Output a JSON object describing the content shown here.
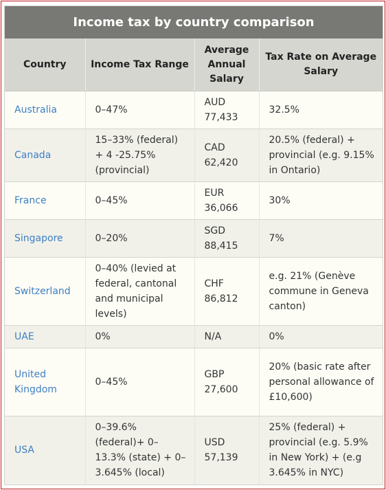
{
  "title": "Income tax by country comparison",
  "headers": {
    "country": "Country",
    "range": "Income Tax Range",
    "salary": "Average Annual Salary",
    "rate": "Tax Rate on Average Salary"
  },
  "rows": [
    {
      "country": "Australia",
      "range": "0–47%",
      "salary": "AUD 77,433",
      "rate": "32.5%"
    },
    {
      "country": "Canada",
      "range": "15–33% (federal) + 4 -25.75% (provincial)",
      "salary": "CAD 62,420",
      "rate": "20.5% (federal) + provincial (e.g. 9.15% in Ontario)"
    },
    {
      "country": "France",
      "range": "0–45%",
      "salary": "EUR 36,066",
      "rate": "30%"
    },
    {
      "country": "Singapore",
      "range": "0–20%",
      "salary": "SGD 88,415",
      "rate": "7%"
    },
    {
      "country": "Switzerland",
      "range": "0–40% (levied at federal, cantonal and municipal levels)",
      "salary": "CHF 86,812",
      "rate": "e.g. 21% (Genève commune in Geneva canton)"
    },
    {
      "country": "UAE",
      "range": "0%",
      "salary": "N/A",
      "rate": "0%"
    },
    {
      "country": "United Kingdom",
      "range": "0–45%",
      "salary": "GBP 27,600",
      "rate": "20% (basic rate after personal allowance of £10,600)"
    },
    {
      "country": "USA",
      "range": "0–39.6% (federal)+ 0–13.3% (state) + 0–3.645% (local)",
      "salary": "USD 57,139",
      "rate": "25% (federal) + provincial (e.g. 5.9% in New York) + (e.g 3.645% in NYC)"
    }
  ]
}
